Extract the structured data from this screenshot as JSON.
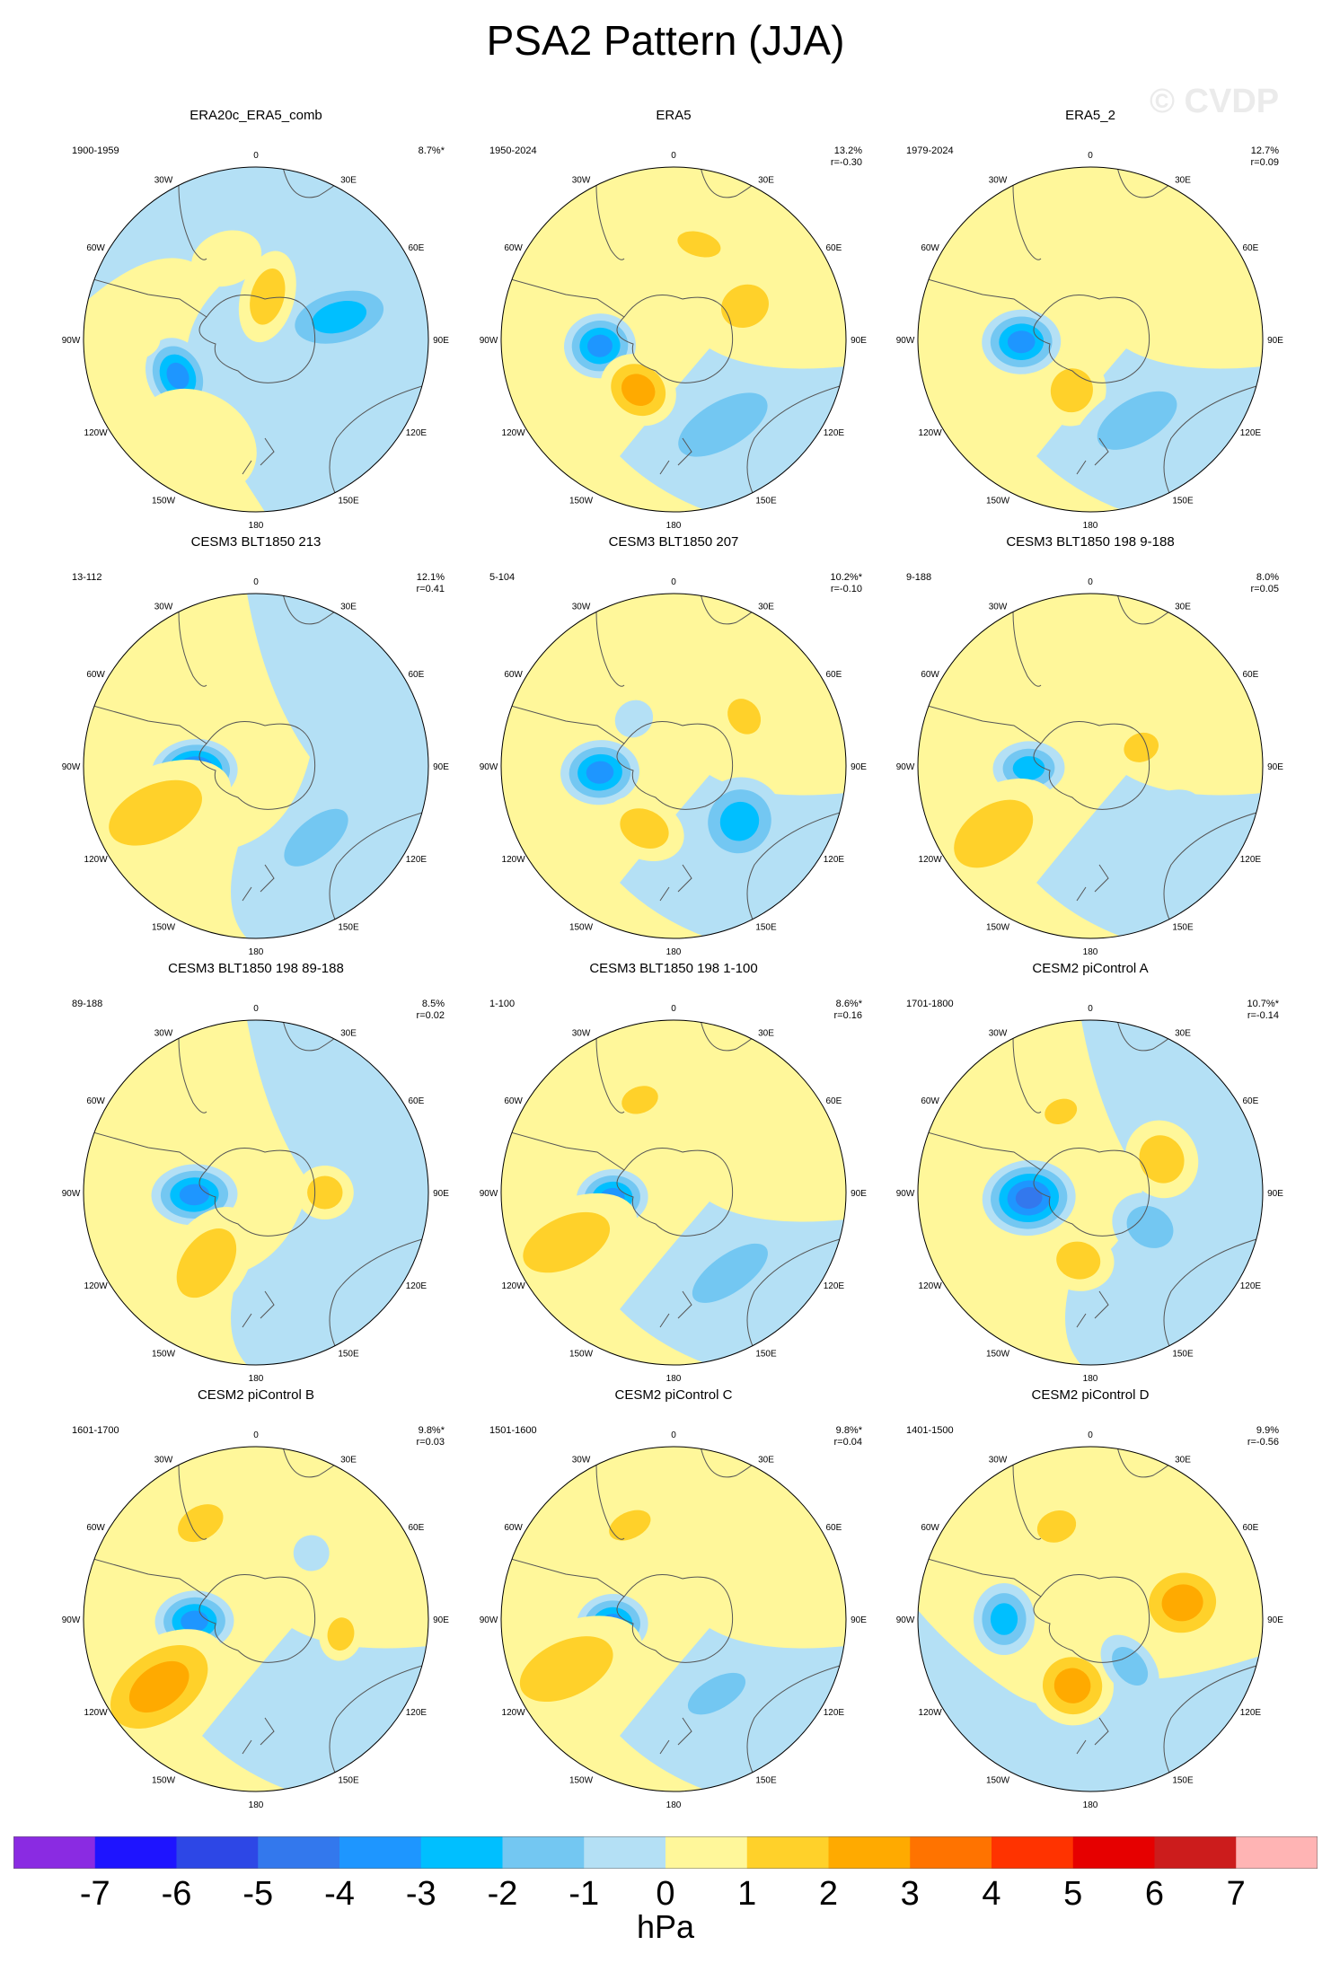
{
  "title": "PSA2 Pattern (JJA)",
  "watermark": "© CVDP",
  "longitude_labels": [
    "0",
    "30E",
    "60E",
    "90E",
    "120E",
    "150E",
    "180",
    "150W",
    "120W",
    "90W",
    "60W",
    "30W"
  ],
  "panels": [
    {
      "title": "ERA20c_ERA5_comb",
      "period": "1900-1959",
      "variance": "8.7%*",
      "r": "",
      "blobs": [
        {
          "lon": -115,
          "lat": -55,
          "v": -4,
          "rx": 44,
          "ry": 34
        },
        {
          "lon": 75,
          "lat": -55,
          "v": -3,
          "rx": 38,
          "ry": 70
        },
        {
          "lon": 15,
          "lat": -72,
          "v": 2,
          "rx": 30,
          "ry": 52
        },
        {
          "lon": -90,
          "lat": -38,
          "v": 1,
          "rx": 24,
          "ry": 36
        },
        {
          "lon": -150,
          "lat": -42,
          "v": 1,
          "rx": 70,
          "ry": 55
        },
        {
          "lon": -20,
          "lat": -55,
          "v": 1,
          "rx": 40,
          "ry": 30
        }
      ],
      "fill": "mix1"
    },
    {
      "title": "ERA5",
      "period": "1950-2024",
      "variance": "13.2%",
      "r": "r=-0.30",
      "blobs": [
        {
          "lon": -95,
          "lat": -60,
          "v": -4,
          "rx": 36,
          "ry": 40
        },
        {
          "lon": -145,
          "lat": -65,
          "v": 3,
          "rx": 44,
          "ry": 38
        },
        {
          "lon": 150,
          "lat": -50,
          "v": -2,
          "rx": 90,
          "ry": 42
        },
        {
          "lon": 65,
          "lat": -58,
          "v": 2,
          "rx": 38,
          "ry": 44
        },
        {
          "lon": 15,
          "lat": -50,
          "v": 2,
          "rx": 40,
          "ry": 22
        }
      ],
      "fill": "mix2"
    },
    {
      "title": "ERA5_2",
      "period": "1979-2024",
      "variance": "12.7%",
      "r": "r=0.09",
      "blobs": [
        {
          "lon": -92,
          "lat": -62,
          "v": -4,
          "rx": 36,
          "ry": 44
        },
        {
          "lon": -160,
          "lat": -68,
          "v": 2,
          "rx": 38,
          "ry": 40
        },
        {
          "lon": 150,
          "lat": -52,
          "v": -2,
          "rx": 80,
          "ry": 40
        },
        {
          "lon": 55,
          "lat": -62,
          "v": 1,
          "rx": 52,
          "ry": 56
        }
      ],
      "fill": "mix2"
    },
    {
      "title": "CESM3 BLT1850 213",
      "period": "13-112",
      "variance": "12.1%",
      "r": "r=0.41",
      "blobs": [
        {
          "lon": -95,
          "lat": -65,
          "v": -5,
          "rx": 36,
          "ry": 48
        },
        {
          "lon": -115,
          "lat": -45,
          "v": 2,
          "rx": 50,
          "ry": 90
        },
        {
          "lon": 140,
          "lat": -52,
          "v": -2,
          "rx": 70,
          "ry": 34
        },
        {
          "lon": -40,
          "lat": -55,
          "v": 1,
          "rx": 24,
          "ry": 20
        }
      ],
      "fill": "mix3"
    },
    {
      "title": "CESM3 BLT1850 207",
      "period": "5-104",
      "variance": "10.2%*",
      "r": "r=-0.10",
      "blobs": [
        {
          "lon": -95,
          "lat": -60,
          "v": -4,
          "rx": 36,
          "ry": 44
        },
        {
          "lon": -155,
          "lat": -62,
          "v": 2,
          "rx": 46,
          "ry": 34
        },
        {
          "lon": 130,
          "lat": -55,
          "v": -3,
          "rx": 50,
          "ry": 48
        },
        {
          "lon": 55,
          "lat": -55,
          "v": 2,
          "rx": 34,
          "ry": 28
        },
        {
          "lon": -40,
          "lat": -65,
          "v": -1,
          "rx": 22,
          "ry": 20
        }
      ],
      "fill": "mix2"
    },
    {
      "title": "CESM3 BLT1850 198 9-188",
      "period": "9-188",
      "variance": "8.0%",
      "r": "r=0.05",
      "blobs": [
        {
          "lon": -92,
          "lat": -65,
          "v": -3,
          "rx": 30,
          "ry": 40
        },
        {
          "lon": -125,
          "lat": -42,
          "v": 2,
          "rx": 50,
          "ry": 80
        },
        {
          "lon": 140,
          "lat": -52,
          "v": -1,
          "rx": 70,
          "ry": 38
        },
        {
          "lon": 70,
          "lat": -68,
          "v": 2,
          "rx": 26,
          "ry": 32
        }
      ],
      "fill": "mix2"
    },
    {
      "title": "CESM3 BLT1850 198 89-188",
      "period": "89-188",
      "variance": "8.5%",
      "r": "r=0.02",
      "blobs": [
        {
          "lon": -92,
          "lat": -65,
          "v": -4,
          "rx": 34,
          "ry": 48
        },
        {
          "lon": -145,
          "lat": -55,
          "v": 2,
          "rx": 44,
          "ry": 70
        },
        {
          "lon": 90,
          "lat": -62,
          "v": 2,
          "rx": 30,
          "ry": 32
        }
      ],
      "fill": "mix3"
    },
    {
      "title": "CESM3 BLT1850 198 1-100",
      "period": "1-100",
      "variance": "8.6%*",
      "r": "r=0.16",
      "blobs": [
        {
          "lon": -95,
          "lat": -65,
          "v": -4,
          "rx": 32,
          "ry": 40
        },
        {
          "lon": -115,
          "lat": -42,
          "v": 2,
          "rx": 46,
          "ry": 84
        },
        {
          "lon": 145,
          "lat": -50,
          "v": -2,
          "rx": 80,
          "ry": 34
        },
        {
          "lon": -20,
          "lat": -50,
          "v": 2,
          "rx": 34,
          "ry": 24
        }
      ],
      "fill": "mix2"
    },
    {
      "title": "CESM2 piControl A",
      "period": "1701-1800",
      "variance": "10.7%*",
      "r": "r=-0.14",
      "blobs": [
        {
          "lon": -95,
          "lat": -65,
          "v": -5,
          "rx": 42,
          "ry": 52
        },
        {
          "lon": -170,
          "lat": -62,
          "v": 2,
          "rx": 40,
          "ry": 34
        },
        {
          "lon": 120,
          "lat": -62,
          "v": -2,
          "rx": 36,
          "ry": 44
        },
        {
          "lon": 65,
          "lat": -58,
          "v": 2,
          "rx": 44,
          "ry": 40
        },
        {
          "lon": -20,
          "lat": -55,
          "v": 2,
          "rx": 30,
          "ry": 22
        }
      ],
      "fill": "mix3"
    },
    {
      "title": "CESM2 piControl B",
      "period": "1601-1700",
      "variance": "9.8%*",
      "r": "r=0.03",
      "blobs": [
        {
          "lon": -92,
          "lat": -65,
          "v": -4,
          "rx": 34,
          "ry": 44
        },
        {
          "lon": -125,
          "lat": -42,
          "v": 3,
          "rx": 52,
          "ry": 84
        },
        {
          "lon": -30,
          "lat": -45,
          "v": 2,
          "rx": 44,
          "ry": 30
        },
        {
          "lon": 100,
          "lat": -55,
          "v": 2,
          "rx": 30,
          "ry": 24
        },
        {
          "lon": 40,
          "lat": -55,
          "v": -1,
          "rx": 20,
          "ry": 20
        }
      ],
      "fill": "mix2"
    },
    {
      "title": "CESM2 piControl C",
      "period": "1501-1600",
      "variance": "9.8%*",
      "r": "r=0.04",
      "blobs": [
        {
          "lon": -95,
          "lat": -65,
          "v": -4,
          "rx": 34,
          "ry": 40
        },
        {
          "lon": -115,
          "lat": -42,
          "v": 2,
          "rx": 50,
          "ry": 90
        },
        {
          "lon": 150,
          "lat": -55,
          "v": -2,
          "rx": 58,
          "ry": 28
        },
        {
          "lon": -25,
          "lat": -48,
          "v": 2,
          "rx": 40,
          "ry": 24
        }
      ],
      "fill": "mix2"
    },
    {
      "title": "CESM2 piControl D",
      "period": "1401-1500",
      "variance": "9.9%",
      "r": "r=-0.56",
      "blobs": [
        {
          "lon": -90,
          "lat": -55,
          "v": -3,
          "rx": 40,
          "ry": 34
        },
        {
          "lon": -165,
          "lat": -62,
          "v": 3,
          "rx": 46,
          "ry": 44
        },
        {
          "lon": 80,
          "lat": -52,
          "v": 3,
          "rx": 46,
          "ry": 52
        },
        {
          "lon": 140,
          "lat": -65,
          "v": -2,
          "rx": 26,
          "ry": 40
        },
        {
          "lon": -20,
          "lat": -50,
          "v": 2,
          "rx": 36,
          "ry": 28
        }
      ],
      "fill": "mix4"
    }
  ],
  "colorbar": {
    "colors": [
      "#8a2be2",
      "#1e14ff",
      "#2d47e6",
      "#3378ed",
      "#1e96ff",
      "#00bfff",
      "#73c7f2",
      "#b4e0f5",
      "#fff79a",
      "#ffd12a",
      "#ffaa00",
      "#ff7300",
      "#ff3300",
      "#e60000",
      "#cc1c1c",
      "#ffb4b4"
    ],
    "ticks": [
      "-7",
      "-6",
      "-5",
      "-4",
      "-3",
      "-2",
      "-1",
      "0",
      "1",
      "2",
      "3",
      "4",
      "5",
      "6",
      "7"
    ],
    "units": "hPa"
  }
}
